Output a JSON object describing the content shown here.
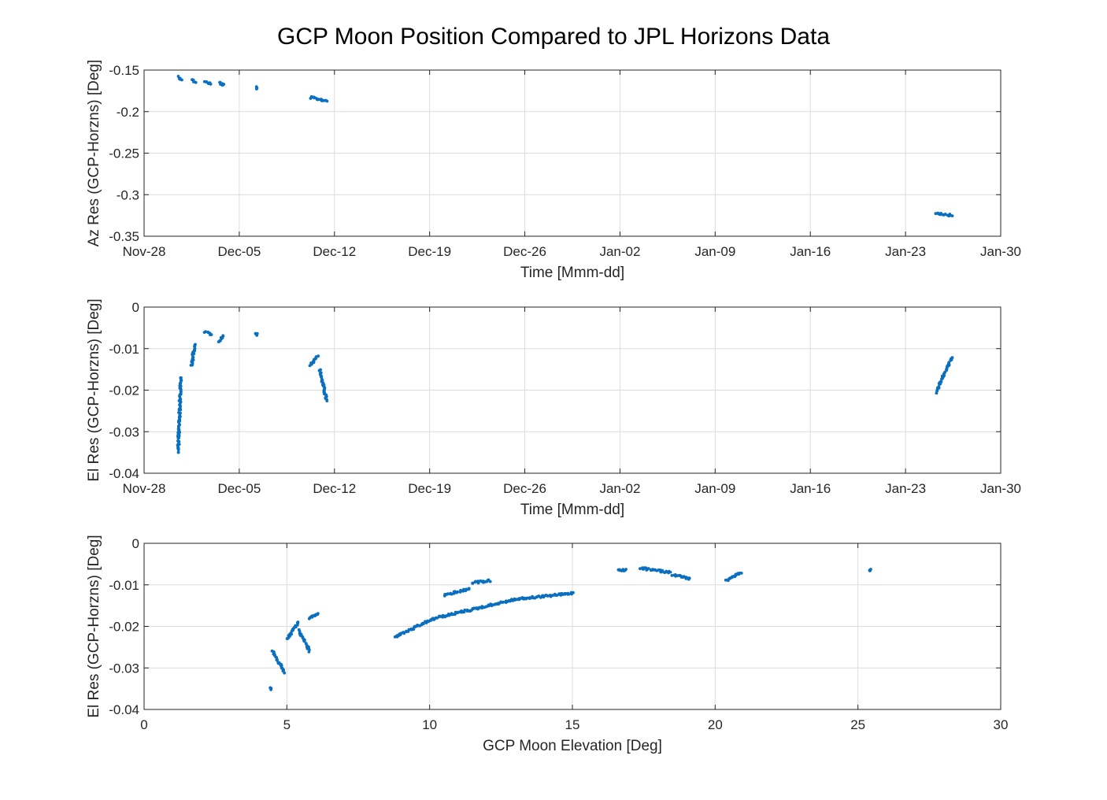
{
  "title": "GCP Moon Position Compared to JPL Horizons Data",
  "colors": {
    "marker": "#0a6fbf",
    "grid": "#dcdcdc",
    "axis": "#262626",
    "text": "#262626"
  },
  "chart_data": [
    {
      "type": "scatter",
      "xlabel": "Time [Mmm-dd]",
      "ylabel": "Az Res  (GCP-Horzns) [Deg]",
      "x_is_date": true,
      "xlim": [
        "2020-11-28",
        "2021-01-30"
      ],
      "ylim": [
        -0.35,
        -0.15
      ],
      "x_ticks": [
        "2020-11-28",
        "2020-12-05",
        "2020-12-12",
        "2020-12-19",
        "2020-12-26",
        "2021-01-02",
        "2021-01-09",
        "2021-01-16",
        "2021-01-23",
        "2021-01-30"
      ],
      "x_tick_labels": [
        "Nov-28",
        "Dec-05",
        "Dec-12",
        "Dec-19",
        "Dec-26",
        "Jan-02",
        "Jan-09",
        "Jan-16",
        "Jan-23",
        "Jan-30"
      ],
      "y_ticks": [
        -0.35,
        -0.3,
        -0.25,
        -0.2,
        -0.15
      ],
      "y_tick_labels": [
        "-0.35",
        "-0.3",
        "-0.25",
        "-0.2",
        "-0.15"
      ],
      "grid": true,
      "segments": [
        {
          "x": [
            "2020-11-30T12:00",
            "2020-11-30T18:00"
          ],
          "y": [
            -0.158,
            -0.161
          ]
        },
        {
          "x": [
            "2020-12-01T12:00",
            "2020-12-01T18:00"
          ],
          "y": [
            -0.162,
            -0.164
          ]
        },
        {
          "x": [
            "2020-12-02T12:00",
            "2020-12-02T22:00"
          ],
          "y": [
            -0.164,
            -0.167
          ]
        },
        {
          "x": [
            "2020-12-03T12:00",
            "2020-12-03T20:00"
          ],
          "y": [
            -0.165,
            -0.168
          ]
        },
        {
          "x": [
            "2020-12-06T06:00",
            "2020-12-06T07:00"
          ],
          "y": [
            -0.171,
            -0.173
          ]
        },
        {
          "x": [
            "2020-12-10T06:00",
            "2020-12-11T10:00"
          ],
          "y": [
            -0.183,
            -0.187
          ]
        },
        {
          "x": [
            "2021-01-25T06:00",
            "2021-01-26T10:00"
          ],
          "y": [
            -0.322,
            -0.325
          ]
        }
      ]
    },
    {
      "type": "scatter",
      "xlabel": "Time [Mmm-dd]",
      "ylabel": "El Res  (GCP-Horzns) [Deg]",
      "x_is_date": true,
      "xlim": [
        "2020-11-28",
        "2021-01-30"
      ],
      "ylim": [
        -0.04,
        0
      ],
      "x_ticks": [
        "2020-11-28",
        "2020-12-05",
        "2020-12-12",
        "2020-12-19",
        "2020-12-26",
        "2021-01-02",
        "2021-01-09",
        "2021-01-16",
        "2021-01-23",
        "2021-01-30"
      ],
      "x_tick_labels": [
        "Nov-28",
        "Dec-05",
        "Dec-12",
        "Dec-19",
        "Dec-26",
        "Jan-02",
        "Jan-09",
        "Jan-16",
        "Jan-23",
        "Jan-30"
      ],
      "y_ticks": [
        -0.04,
        -0.03,
        -0.02,
        -0.01,
        0
      ],
      "y_tick_labels": [
        "-0.04",
        "-0.03",
        "-0.02",
        "-0.01",
        "0"
      ],
      "grid": true,
      "segments": [
        {
          "x": [
            "2020-11-30T12:00",
            "2020-11-30T17:00"
          ],
          "y": [
            -0.035,
            -0.017
          ]
        },
        {
          "x": [
            "2020-12-01T12:00",
            "2020-12-01T17:00"
          ],
          "y": [
            -0.014,
            -0.009
          ]
        },
        {
          "x": [
            "2020-12-02T12:00",
            "2020-12-02T22:00"
          ],
          "y": [
            -0.006,
            -0.0065
          ]
        },
        {
          "x": [
            "2020-12-03T12:00",
            "2020-12-03T20:00"
          ],
          "y": [
            -0.0085,
            -0.007
          ]
        },
        {
          "x": [
            "2020-12-06T06:00",
            "2020-12-06T07:00"
          ],
          "y": [
            -0.0065,
            -0.0066
          ]
        },
        {
          "x": [
            "2020-12-10T06:00",
            "2020-12-10T18:00"
          ],
          "y": [
            -0.014,
            -0.012
          ]
        },
        {
          "x": [
            "2020-12-10T22:00",
            "2020-12-11T10:00"
          ],
          "y": [
            -0.015,
            -0.0225
          ]
        },
        {
          "x": [
            "2021-01-25T06:00",
            "2021-01-26T10:00"
          ],
          "y": [
            -0.0205,
            -0.012
          ]
        }
      ]
    },
    {
      "type": "scatter",
      "xlabel": "GCP Moon Elevation [Deg]",
      "ylabel": "El Res  (GCP-Horzns) [Deg]",
      "x_is_date": false,
      "xlim": [
        0,
        30
      ],
      "ylim": [
        -0.04,
        0
      ],
      "x_ticks": [
        0,
        5,
        10,
        15,
        20,
        25,
        30
      ],
      "x_tick_labels": [
        "0",
        "5",
        "10",
        "15",
        "20",
        "25",
        "30"
      ],
      "y_ticks": [
        -0.04,
        -0.03,
        -0.02,
        -0.01,
        0
      ],
      "y_tick_labels": [
        "-0.04",
        "-0.03",
        "-0.02",
        "-0.01",
        "0"
      ],
      "grid": true,
      "segments": [
        {
          "x": [
            4.4,
            4.45
          ],
          "y": [
            -0.035,
            -0.035
          ]
        },
        {
          "x": [
            4.5,
            4.9
          ],
          "y": [
            -0.026,
            -0.031
          ]
        },
        {
          "x": [
            5.0,
            5.4
          ],
          "y": [
            -0.023,
            -0.019
          ]
        },
        {
          "x": [
            5.4,
            5.8
          ],
          "y": [
            -0.021,
            -0.026
          ]
        },
        {
          "x": [
            5.8,
            6.1
          ],
          "y": [
            -0.018,
            -0.017
          ]
        },
        {
          "x": [
            8.8,
            10.2
          ],
          "y": [
            -0.0225,
            -0.018
          ]
        },
        {
          "x": [
            10.2,
            13.0
          ],
          "y": [
            -0.018,
            -0.0135
          ]
        },
        {
          "x": [
            13.0,
            15.0
          ],
          "y": [
            -0.0135,
            -0.012
          ]
        },
        {
          "x": [
            10.5,
            11.4
          ],
          "y": [
            -0.0125,
            -0.011
          ]
        },
        {
          "x": [
            11.5,
            12.1
          ],
          "y": [
            -0.0095,
            -0.009
          ]
        },
        {
          "x": [
            16.6,
            16.9
          ],
          "y": [
            -0.0065,
            -0.0065
          ]
        },
        {
          "x": [
            17.4,
            18.4
          ],
          "y": [
            -0.006,
            -0.007
          ]
        },
        {
          "x": [
            18.5,
            19.1
          ],
          "y": [
            -0.0075,
            -0.0085
          ]
        },
        {
          "x": [
            20.4,
            20.9
          ],
          "y": [
            -0.009,
            -0.007
          ]
        },
        {
          "x": [
            25.4,
            25.45
          ],
          "y": [
            -0.0065,
            -0.0065
          ]
        }
      ]
    }
  ]
}
